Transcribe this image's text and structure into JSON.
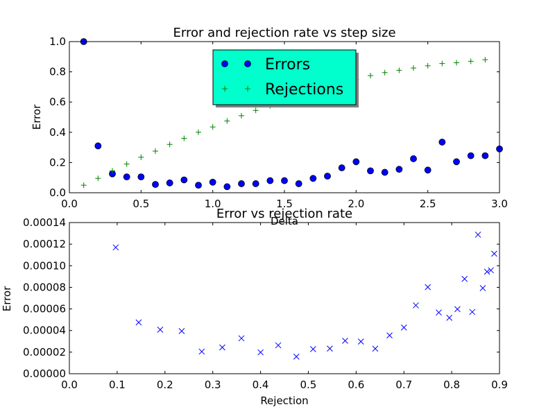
{
  "chart_data": [
    {
      "type": "scatter",
      "title": "Error and rejection rate vs step size",
      "xlabel": "Delta",
      "ylabel": "Error",
      "xlim": [
        0.0,
        3.0
      ],
      "ylim": [
        0.0,
        1.0
      ],
      "x_ticks": [
        "0.0",
        "0.5",
        "1.0",
        "1.5",
        "2.0",
        "2.5",
        "3.0"
      ],
      "y_ticks": [
        "0.0",
        "0.2",
        "0.4",
        "0.6",
        "0.8",
        "1.0"
      ],
      "legend": {
        "placement": "upper center",
        "background": "#00ffcc"
      },
      "series": [
        {
          "name": "Errors",
          "marker": "circle",
          "color": "#0000ff",
          "x": [
            0.1,
            0.2,
            0.3,
            0.4,
            0.5,
            0.6,
            0.7,
            0.8,
            0.9,
            1.0,
            1.1,
            1.2,
            1.3,
            1.4,
            1.5,
            1.6,
            1.7,
            1.8,
            1.9,
            2.0,
            2.1,
            2.2,
            2.3,
            2.4,
            2.5,
            2.6,
            2.7,
            2.8,
            2.9,
            3.0
          ],
          "y": [
            1.0,
            0.31,
            0.125,
            0.105,
            0.105,
            0.055,
            0.065,
            0.085,
            0.05,
            0.07,
            0.04,
            0.06,
            0.06,
            0.08,
            0.08,
            0.06,
            0.095,
            0.11,
            0.165,
            0.205,
            0.145,
            0.135,
            0.155,
            0.225,
            0.15,
            0.335,
            0.205,
            0.245,
            0.245,
            0.29
          ]
        },
        {
          "name": "Rejections",
          "marker": "plus",
          "color": "#008000",
          "x": [
            0.1,
            0.2,
            0.3,
            0.4,
            0.5,
            0.6,
            0.7,
            0.8,
            0.9,
            1.0,
            1.1,
            1.2,
            1.3,
            1.4,
            1.5,
            1.6,
            1.7,
            1.8,
            1.9,
            2.0,
            2.1,
            2.2,
            2.3,
            2.4,
            2.5,
            2.6,
            2.7,
            2.8,
            2.9
          ],
          "y": [
            0.05,
            0.095,
            0.145,
            0.19,
            0.235,
            0.275,
            0.32,
            0.36,
            0.4,
            0.435,
            0.475,
            0.51,
            0.545,
            0.575,
            0.61,
            0.645,
            0.67,
            0.7,
            0.73,
            0.75,
            0.775,
            0.795,
            0.81,
            0.825,
            0.84,
            0.855,
            0.86,
            0.87,
            0.88
          ]
        }
      ]
    },
    {
      "type": "scatter",
      "title": "Error vs rejection rate",
      "xlabel": "Rejection",
      "ylabel": "Error",
      "xlim": [
        0.0,
        0.9
      ],
      "ylim": [
        0.0,
        0.00014
      ],
      "x_ticks": [
        "0.0",
        "0.1",
        "0.2",
        "0.3",
        "0.4",
        "0.5",
        "0.6",
        "0.7",
        "0.8",
        "0.9"
      ],
      "y_ticks": [
        "0.00000",
        "0.00002",
        "0.00004",
        "0.00006",
        "0.00008",
        "0.00010",
        "0.00012",
        "0.00014"
      ],
      "series": [
        {
          "marker": "x",
          "color": "#0000ff",
          "x": [
            0.097,
            0.145,
            0.19,
            0.235,
            0.277,
            0.32,
            0.36,
            0.4,
            0.437,
            0.475,
            0.51,
            0.545,
            0.577,
            0.61,
            0.64,
            0.67,
            0.7,
            0.725,
            0.75,
            0.773,
            0.795,
            0.812,
            0.827,
            0.843,
            0.855,
            0.865,
            0.874,
            0.882,
            0.889
          ],
          "y": [
            0.000117,
            4.75e-05,
            4.08e-05,
            3.95e-05,
            2.05e-05,
            2.43e-05,
            3.28e-05,
            1.98e-05,
            2.63e-05,
            1.58e-05,
            2.28e-05,
            2.33e-05,
            3.05e-05,
            2.98e-05,
            2.32e-05,
            3.55e-05,
            4.28e-05,
            6.33e-05,
            8.02e-05,
            5.67e-05,
            5.18e-05,
            5.98e-05,
            8.78e-05,
            5.72e-05,
            0.0001288,
            7.93e-05,
            9.45e-05,
            9.58e-05,
            0.0001112
          ]
        }
      ]
    }
  ]
}
